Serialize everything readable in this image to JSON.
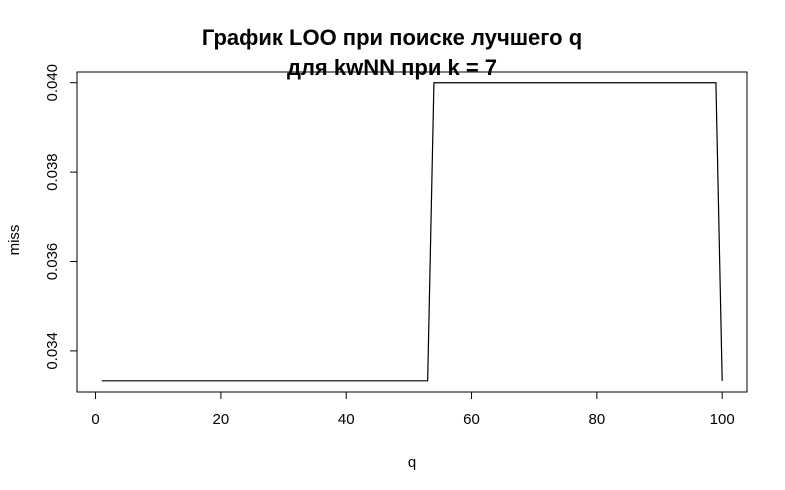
{
  "chart_data": {
    "type": "line",
    "title_lines": [
      "График LOO при поиске лучшего q",
      "для kwNN при k = 7"
    ],
    "xlabel": "q",
    "ylabel": "miss",
    "xlim": [
      -2.96,
      103.96
    ],
    "ylim": [
      0.03308,
      0.04024
    ],
    "x_ticks": [
      0,
      20,
      40,
      60,
      80,
      100
    ],
    "x_tick_labels": [
      "0",
      "20",
      "40",
      "60",
      "80",
      "100"
    ],
    "y_ticks": [
      0.034,
      0.036,
      0.038,
      0.04
    ],
    "y_tick_labels": [
      "0.034",
      "0.036",
      "0.038",
      "0.040"
    ],
    "grid": false,
    "legend": "none",
    "series": [
      {
        "color": "#000000",
        "points": [
          {
            "x": 1,
            "y": 0.03333
          },
          {
            "x": 53,
            "y": 0.03333
          },
          {
            "x": 54,
            "y": 0.04
          },
          {
            "x": 99,
            "y": 0.04
          },
          {
            "x": 100,
            "y": 0.03333
          }
        ]
      }
    ]
  }
}
